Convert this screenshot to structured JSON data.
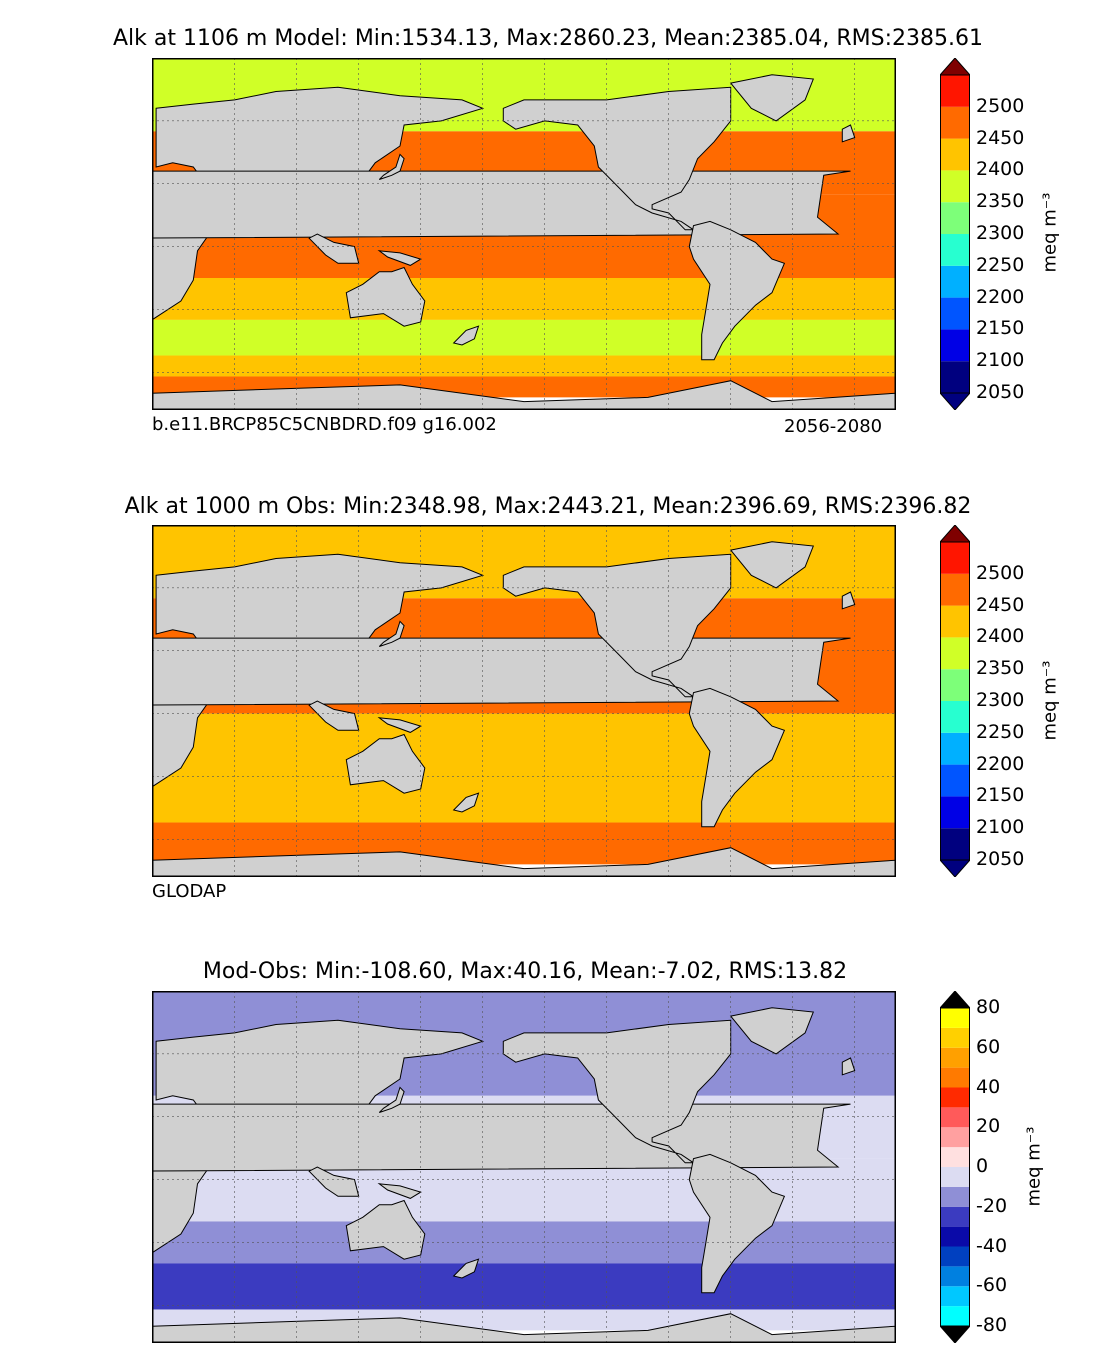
{
  "chart_data": [
    {
      "type": "heatmap",
      "title": "Alk at 1106 m Model: Min:1534.13, Max:2860.23, Mean:2385.04, RMS:2385.61",
      "note_left": "b.e11.BRCP85C5CNBDRD.f09 g16.002",
      "note_right": "2056-2080",
      "units": "meq m⁻³",
      "colorbar": {
        "levels": [
          2050,
          2100,
          2150,
          2200,
          2250,
          2300,
          2350,
          2400,
          2450,
          2500
        ],
        "tick_labels": [
          "2050",
          "2100",
          "2150",
          "2200",
          "2250",
          "2300",
          "2350",
          "2400",
          "2450",
          "2500"
        ],
        "colors": [
          "#00007f",
          "#0000e6",
          "#0055ff",
          "#00b0ff",
          "#27ffd0",
          "#7dff79",
          "#d0ff27",
          "#ffc400",
          "#ff6a00",
          "#ff1500",
          "#7f0000"
        ],
        "extend": "both"
      },
      "bands": [
        {
          "lat_from": 90,
          "lat_to": 55,
          "value": 2325
        },
        {
          "lat_from": 55,
          "lat_to": 25,
          "value": 2425
        },
        {
          "lat_from": 25,
          "lat_to": -15,
          "value": 2425
        },
        {
          "lat_from": -15,
          "lat_to": -35,
          "value": 2375
        },
        {
          "lat_from": -35,
          "lat_to": -52,
          "value": 2325
        },
        {
          "lat_from": -52,
          "lat_to": -62,
          "value": 2375
        },
        {
          "lat_from": -62,
          "lat_to": -72,
          "value": 2425
        }
      ]
    },
    {
      "type": "heatmap",
      "title": "Alk at 1000 m Obs: Min:2348.98, Max:2443.21, Mean:2396.69, RMS:2396.82",
      "note_left": "GLODAP",
      "units": "meq m⁻³",
      "colorbar": {
        "levels": [
          2050,
          2100,
          2150,
          2200,
          2250,
          2300,
          2350,
          2400,
          2450,
          2500
        ],
        "tick_labels": [
          "2050",
          "2100",
          "2150",
          "2200",
          "2250",
          "2300",
          "2350",
          "2400",
          "2450",
          "2500"
        ],
        "colors": [
          "#00007f",
          "#0000e6",
          "#0055ff",
          "#00b0ff",
          "#27ffd0",
          "#7dff79",
          "#d0ff27",
          "#ffc400",
          "#ff6a00",
          "#ff1500",
          "#7f0000"
        ],
        "extend": "both"
      },
      "bands": [
        {
          "lat_from": 90,
          "lat_to": 55,
          "value": 2375
        },
        {
          "lat_from": 55,
          "lat_to": 0,
          "value": 2425
        },
        {
          "lat_from": 0,
          "lat_to": -52,
          "value": 2375
        },
        {
          "lat_from": -52,
          "lat_to": -72,
          "value": 2425
        }
      ]
    },
    {
      "type": "heatmap",
      "title": "Mod-Obs: Min:-108.60, Max:40.16, Mean:-7.02, RMS:13.82",
      "units": "meq m⁻³",
      "colorbar": {
        "levels": [
          -80,
          -70,
          -60,
          -50,
          -40,
          -30,
          -20,
          -10,
          0,
          10,
          20,
          30,
          40,
          50,
          60,
          70,
          80
        ],
        "tick_labels": [
          "-80",
          "-60",
          "-40",
          "-20",
          "0",
          "20",
          "40",
          "60",
          "80"
        ],
        "tick_values": [
          -80,
          -60,
          -40,
          -20,
          0,
          20,
          40,
          60,
          80
        ],
        "colors": [
          "#000000",
          "#00ffff",
          "#00c8ff",
          "#0080e0",
          "#0040c0",
          "#0a0aa8",
          "#3b3bc0",
          "#8f8fd6",
          "#dcdcf2",
          "#ffe0e0",
          "#ffa0a0",
          "#ff5a5a",
          "#ff2a00",
          "#ff7a00",
          "#ffa000",
          "#ffd000",
          "#ffff00",
          "#000000"
        ],
        "extend": "both"
      },
      "bands": [
        {
          "lat_from": 90,
          "lat_to": 40,
          "value": -15
        },
        {
          "lat_from": 40,
          "lat_to": 10,
          "value": -5
        },
        {
          "lat_from": 10,
          "lat_to": -20,
          "value": -5
        },
        {
          "lat_from": -20,
          "lat_to": -40,
          "value": -15
        },
        {
          "lat_from": -40,
          "lat_to": -62,
          "value": -25
        },
        {
          "lat_from": -62,
          "lat_to": -72,
          "value": -5
        }
      ]
    }
  ]
}
